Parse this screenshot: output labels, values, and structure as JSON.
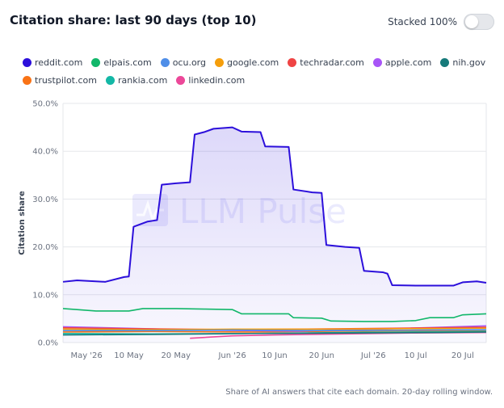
{
  "header": {
    "title": "Citation share: last 90 days (top 10)",
    "toggle_label": "Stacked 100%",
    "stacked_on": false
  },
  "watermark": "LLM Pulse",
  "footnote": "Share of AI answers that cite each domain. 20-day rolling window.",
  "chart_data": {
    "type": "line",
    "ylabel": "Citation share",
    "ylim": [
      0,
      50
    ],
    "yticks": [
      "0.0%",
      "10.0%",
      "20.0%",
      "30.0%",
      "40.0%",
      "50.0%"
    ],
    "grid": true,
    "legend_position": "top",
    "x_axis": {
      "start": "2026-04-26",
      "end": "2026-07-25",
      "ticks": [
        {
          "date": "2026-05-01",
          "label": "May '26"
        },
        {
          "date": "2026-05-10",
          "label": "10 May"
        },
        {
          "date": "2026-05-20",
          "label": "20 May"
        },
        {
          "date": "2026-06-01",
          "label": "Jun '26"
        },
        {
          "date": "2026-06-10",
          "label": "10 Jun"
        },
        {
          "date": "2026-06-20",
          "label": "20 Jun"
        },
        {
          "date": "2026-07-01",
          "label": "Jul '26"
        },
        {
          "date": "2026-07-10",
          "label": "10 Jul"
        },
        {
          "date": "2026-07-20",
          "label": "20 Jul"
        }
      ]
    },
    "series": [
      {
        "name": "reddit.com",
        "color": "#2c0fdb",
        "fill": true,
        "points": [
          [
            "2026-04-26",
            12.7
          ],
          [
            "2026-04-29",
            13.0
          ],
          [
            "2026-05-03",
            12.8
          ],
          [
            "2026-05-05",
            12.7
          ],
          [
            "2026-05-09",
            13.7
          ],
          [
            "2026-05-10",
            13.8
          ],
          [
            "2026-05-11",
            24.2
          ],
          [
            "2026-05-14",
            25.3
          ],
          [
            "2026-05-16",
            25.6
          ],
          [
            "2026-05-17",
            33.0
          ],
          [
            "2026-05-20",
            33.3
          ],
          [
            "2026-05-23",
            33.5
          ],
          [
            "2026-05-24",
            43.5
          ],
          [
            "2026-05-26",
            44.0
          ],
          [
            "2026-05-28",
            44.7
          ],
          [
            "2026-06-01",
            45.0
          ],
          [
            "2026-06-03",
            44.1
          ],
          [
            "2026-06-07",
            44.0
          ],
          [
            "2026-06-08",
            41.0
          ],
          [
            "2026-06-13",
            40.9
          ],
          [
            "2026-06-14",
            32.0
          ],
          [
            "2026-06-18",
            31.4
          ],
          [
            "2026-06-20",
            31.3
          ],
          [
            "2026-06-21",
            20.4
          ],
          [
            "2026-06-25",
            20.0
          ],
          [
            "2026-06-28",
            19.8
          ],
          [
            "2026-06-29",
            15.0
          ],
          [
            "2026-07-03",
            14.7
          ],
          [
            "2026-07-04",
            14.4
          ],
          [
            "2026-07-05",
            12.0
          ],
          [
            "2026-07-10",
            11.9
          ],
          [
            "2026-07-18",
            11.9
          ],
          [
            "2026-07-20",
            12.6
          ],
          [
            "2026-07-23",
            12.8
          ],
          [
            "2026-07-25",
            12.5
          ]
        ]
      },
      {
        "name": "elpais.com",
        "color": "#12b76a",
        "points": [
          [
            "2026-04-26",
            7.1
          ],
          [
            "2026-04-29",
            6.9
          ],
          [
            "2026-05-03",
            6.6
          ],
          [
            "2026-05-10",
            6.6
          ],
          [
            "2026-05-13",
            7.1
          ],
          [
            "2026-05-20",
            7.1
          ],
          [
            "2026-05-26",
            7.0
          ],
          [
            "2026-06-01",
            6.9
          ],
          [
            "2026-06-03",
            6.0
          ],
          [
            "2026-06-13",
            6.0
          ],
          [
            "2026-06-14",
            5.2
          ],
          [
            "2026-06-20",
            5.1
          ],
          [
            "2026-06-22",
            4.5
          ],
          [
            "2026-06-29",
            4.4
          ],
          [
            "2026-07-05",
            4.4
          ],
          [
            "2026-07-10",
            4.6
          ],
          [
            "2026-07-13",
            5.2
          ],
          [
            "2026-07-18",
            5.2
          ],
          [
            "2026-07-20",
            5.8
          ],
          [
            "2026-07-25",
            6.0
          ]
        ]
      },
      {
        "name": "ocu.org",
        "color": "#4f8ee8",
        "points": [
          [
            "2026-04-26",
            2.5
          ],
          [
            "2026-05-15",
            2.5
          ],
          [
            "2026-06-01",
            2.6
          ],
          [
            "2026-06-20",
            2.5
          ],
          [
            "2026-07-10",
            2.6
          ],
          [
            "2026-07-25",
            2.7
          ]
        ]
      },
      {
        "name": "google.com",
        "color": "#f59e0b",
        "points": [
          [
            "2026-04-26",
            2.8
          ],
          [
            "2026-05-15",
            2.7
          ],
          [
            "2026-06-01",
            2.8
          ],
          [
            "2026-06-20",
            2.8
          ],
          [
            "2026-07-10",
            2.9
          ],
          [
            "2026-07-25",
            3.0
          ]
        ]
      },
      {
        "name": "techradar.com",
        "color": "#ef4444",
        "points": [
          [
            "2026-04-26",
            3.1
          ],
          [
            "2026-05-10",
            2.9
          ],
          [
            "2026-06-01",
            2.7
          ],
          [
            "2026-06-15",
            2.8
          ],
          [
            "2026-07-05",
            3.0
          ],
          [
            "2026-07-25",
            3.2
          ]
        ]
      },
      {
        "name": "apple.com",
        "color": "#a855f7",
        "points": [
          [
            "2026-04-26",
            3.3
          ],
          [
            "2026-05-10",
            3.0
          ],
          [
            "2026-05-25",
            2.6
          ],
          [
            "2026-06-15",
            2.4
          ],
          [
            "2026-07-05",
            2.9
          ],
          [
            "2026-07-25",
            3.5
          ]
        ]
      },
      {
        "name": "nih.gov",
        "color": "#167a7a",
        "points": [
          [
            "2026-04-26",
            1.6
          ],
          [
            "2026-05-15",
            1.7
          ],
          [
            "2026-06-05",
            1.9
          ],
          [
            "2026-06-25",
            2.0
          ],
          [
            "2026-07-15",
            2.1
          ],
          [
            "2026-07-25",
            2.2
          ]
        ]
      },
      {
        "name": "trustpilot.com",
        "color": "#f97316",
        "points": [
          [
            "2026-04-26",
            2.2
          ],
          [
            "2026-05-15",
            2.3
          ],
          [
            "2026-06-05",
            2.2
          ],
          [
            "2026-06-25",
            2.4
          ],
          [
            "2026-07-15",
            2.5
          ],
          [
            "2026-07-25",
            2.6
          ]
        ]
      },
      {
        "name": "rankia.com",
        "color": "#14b8a6",
        "points": [
          [
            "2026-04-26",
            1.9
          ],
          [
            "2026-05-15",
            1.8
          ],
          [
            "2026-06-05",
            1.9
          ],
          [
            "2026-06-25",
            2.1
          ],
          [
            "2026-07-15",
            2.3
          ],
          [
            "2026-07-25",
            2.4
          ]
        ]
      },
      {
        "name": "linkedin.com",
        "color": "#ec4899",
        "points": [
          [
            "2026-05-23",
            0.9
          ],
          [
            "2026-06-01",
            1.4
          ],
          [
            "2026-06-10",
            1.6
          ],
          [
            "2026-06-25",
            1.8
          ],
          [
            "2026-07-10",
            2.0
          ],
          [
            "2026-07-25",
            2.1
          ]
        ]
      }
    ]
  }
}
